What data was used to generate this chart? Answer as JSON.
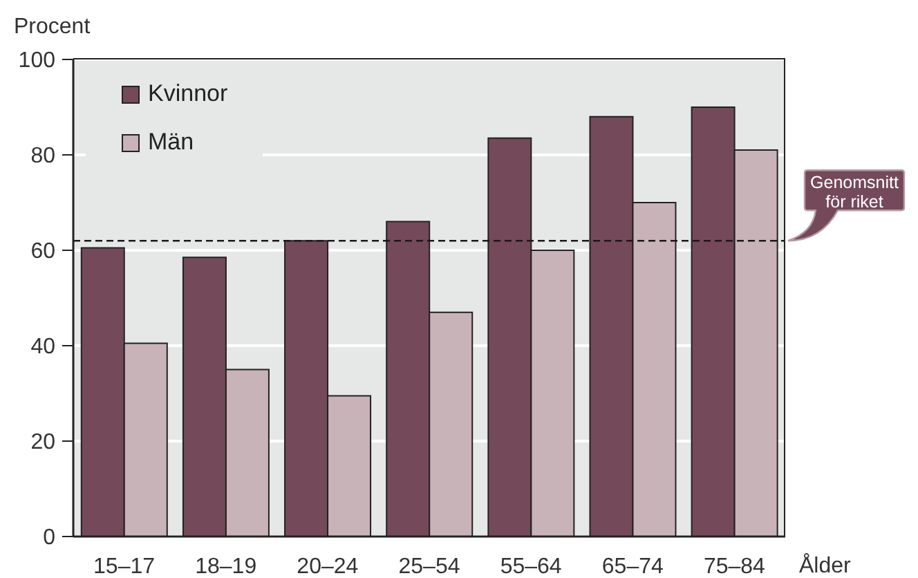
{
  "chart_data": {
    "type": "bar",
    "ylabel": "Procent",
    "xlabel": "Ålder",
    "categories": [
      "15–17",
      "18–19",
      "20–24",
      "25–54",
      "55–64",
      "65–74",
      "75–84"
    ],
    "series": [
      {
        "name": "Kvinnor",
        "color": "#74495a",
        "values": [
          60.5,
          58.5,
          62,
          66,
          83.5,
          88,
          90
        ]
      },
      {
        "name": "Män",
        "color": "#c7b3b8",
        "values": [
          40.5,
          35,
          29.5,
          47,
          60,
          70,
          81
        ]
      }
    ],
    "ylim": [
      0,
      100
    ],
    "yticks": [
      0,
      20,
      40,
      60,
      80,
      100
    ],
    "grid": "y",
    "legend": "top left",
    "ref_lines": [
      {
        "axis": "y",
        "value": 62,
        "label": "Genomsnitt för riket",
        "color": "#1a1a1a",
        "line_style": "dashed"
      }
    ]
  }
}
